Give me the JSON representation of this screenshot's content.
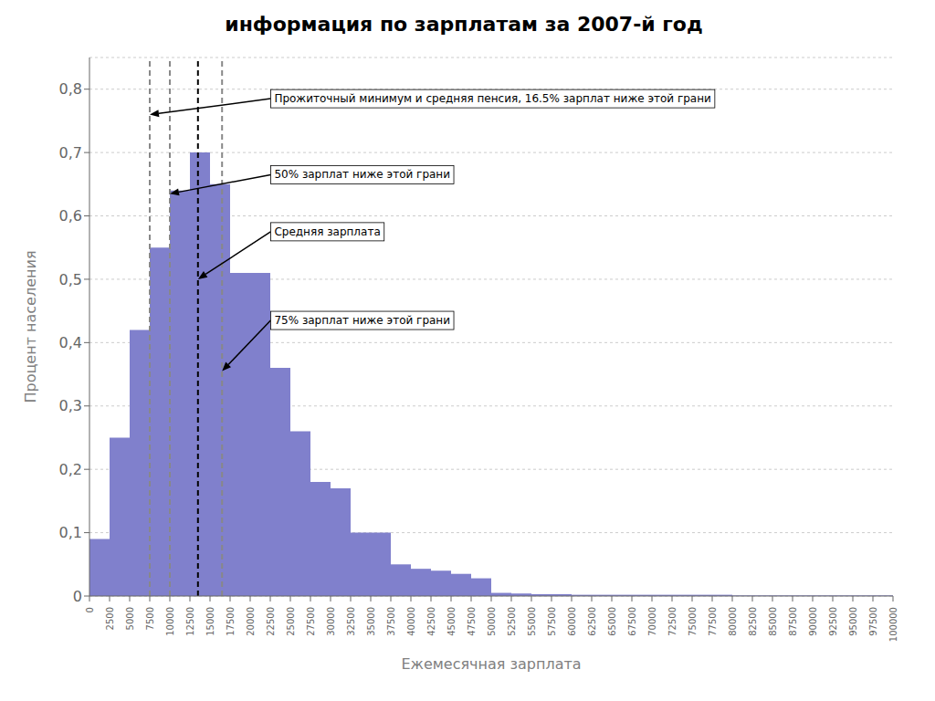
{
  "chart_data": {
    "type": "histogram",
    "title": "информация по зарплатам за 2007-й год",
    "xlabel": "Ежемесячная зарплата",
    "ylabel": "Процент населения",
    "color": "#8080cc",
    "bins": [
      0,
      2500,
      5000,
      7500,
      10000,
      12500,
      15000,
      17500,
      20000,
      22500,
      25000,
      27500,
      30000,
      32500,
      35000,
      37500,
      40000,
      42500,
      45000,
      47500,
      50000,
      52500,
      55000,
      57500,
      60000,
      62500,
      65000,
      67500,
      70000,
      72500,
      75000,
      77500,
      80000,
      82500,
      85000,
      87500,
      90000,
      92500,
      95000,
      97500,
      100000
    ],
    "values": [
      0.09,
      0.25,
      0.42,
      0.55,
      0.64,
      0.7,
      0.65,
      0.51,
      0.51,
      0.36,
      0.26,
      0.18,
      0.17,
      0.1,
      0.1,
      0.05,
      0.043,
      0.04,
      0.035,
      0.028,
      0.005,
      0.004,
      0.003,
      0.003,
      0.002,
      0.002,
      0.002,
      0.002,
      0.002,
      0.002,
      0.002,
      0.002,
      0.001,
      0.001,
      0.001,
      0.001,
      0.001,
      0.001,
      0.001,
      0.001
    ],
    "xlim": [
      0,
      100000
    ],
    "xticks": [
      0,
      2500,
      5000,
      7500,
      10000,
      12500,
      15000,
      17500,
      20000,
      22500,
      25000,
      27500,
      30000,
      32500,
      35000,
      37500,
      40000,
      42500,
      45000,
      47500,
      50000,
      52500,
      55000,
      57500,
      60000,
      62500,
      65000,
      67500,
      70000,
      72500,
      75000,
      77500,
      80000,
      82500,
      85000,
      87500,
      90000,
      92500,
      95000,
      97500,
      100000
    ],
    "ylim": [
      0,
      0.85
    ],
    "yticks": [
      0,
      {
        "value": 0.1,
        "label": "0,1"
      },
      {
        "value": 0.2,
        "label": "0,2"
      },
      {
        "value": 0.3,
        "label": "0,3"
      },
      {
        "value": 0.4,
        "label": "0,4"
      },
      {
        "value": 0.5,
        "label": "0,5"
      },
      {
        "value": 0.6,
        "label": "0,6"
      },
      {
        "value": 0.7,
        "label": "0,7"
      },
      {
        "value": 0.8,
        "label": "0,8"
      }
    ],
    "grid": "y",
    "vlines": [
      {
        "x": 7500,
        "color": "#888888",
        "line_style": "dashed"
      },
      {
        "x": 10000,
        "color": "#888888",
        "line_style": "dashed"
      },
      {
        "x": 13500,
        "color": "#000000",
        "line_style": "dashed"
      },
      {
        "x": 16500,
        "color": "#888888",
        "line_style": "dashed"
      }
    ],
    "annotations": [
      {
        "text": "Прожиточный минимум и средняя пенсия, 16.5% зарплат ниже этой грани",
        "x": 7500,
        "y": 0.76,
        "text_x": 23000,
        "text_y": 0.785
      },
      {
        "text": "50% зарплат ниже этой грани",
        "x": 10000,
        "y": 0.635,
        "text_x": 23000,
        "text_y": 0.665
      },
      {
        "text": "Средняя зарплата",
        "x": 13500,
        "y": 0.5,
        "text_x": 23000,
        "text_y": 0.575
      },
      {
        "text": "75% зарплат ниже этой грани",
        "x": 16500,
        "y": 0.355,
        "text_x": 23000,
        "text_y": 0.435
      }
    ]
  }
}
